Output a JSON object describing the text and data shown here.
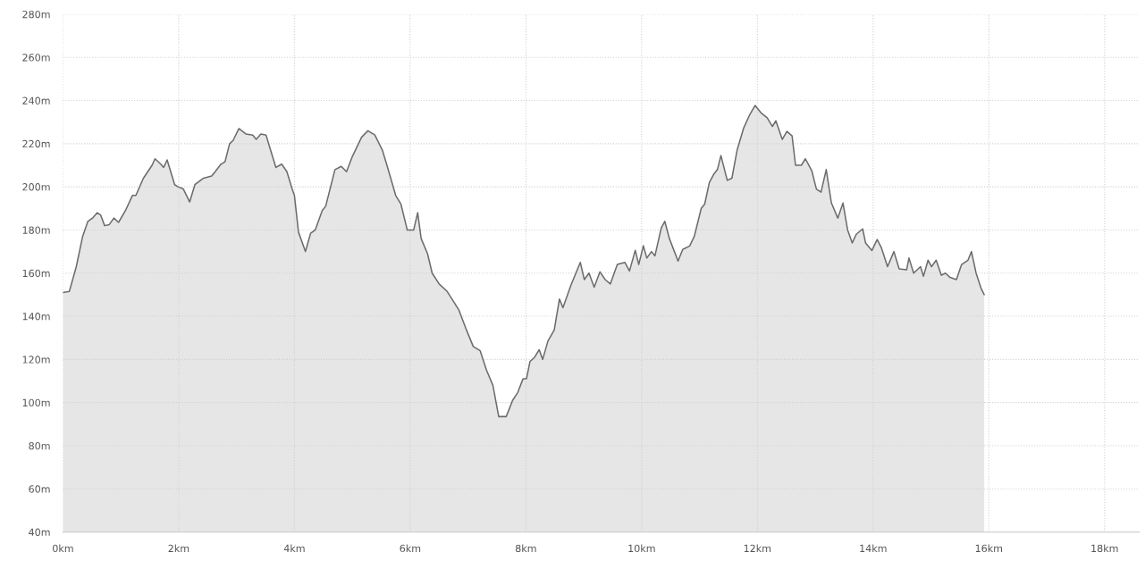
{
  "chart_data": {
    "type": "area",
    "x": [
      0,
      0.11,
      0.23,
      0.34,
      0.43,
      0.51,
      0.59,
      0.65,
      0.72,
      0.8,
      0.88,
      0.96,
      1.08,
      1.2,
      1.26,
      1.39,
      1.54,
      1.59,
      1.69,
      1.74,
      1.8,
      1.93,
      1.99,
      2.08,
      2.19,
      2.28,
      2.43,
      2.57,
      2.63,
      2.73,
      2.8,
      2.88,
      2.94,
      3.04,
      3.16,
      3.28,
      3.34,
      3.42,
      3.51,
      3.57,
      3.68,
      3.78,
      3.87,
      3.96,
      4.0,
      4.07,
      4.19,
      4.28,
      4.36,
      4.48,
      4.54,
      4.7,
      4.81,
      4.9,
      5.0,
      5.16,
      5.27,
      5.39,
      5.52,
      5.62,
      5.75,
      5.84,
      5.95,
      6.06,
      6.13,
      6.19,
      6.3,
      6.38,
      6.5,
      6.64,
      6.84,
      6.96,
      7.09,
      7.21,
      7.32,
      7.43,
      7.53,
      7.66,
      7.77,
      7.86,
      7.95,
      8.01,
      8.07,
      8.15,
      8.23,
      8.29,
      8.38,
      8.49,
      8.58,
      8.64,
      8.78,
      8.94,
      9.01,
      9.09,
      9.18,
      9.28,
      9.37,
      9.46,
      9.58,
      9.71,
      9.79,
      9.89,
      9.95,
      10.03,
      10.09,
      10.17,
      10.23,
      10.34,
      10.4,
      10.48,
      10.63,
      10.71,
      10.83,
      10.91,
      11.03,
      11.09,
      11.17,
      11.25,
      11.31,
      11.37,
      11.48,
      11.56,
      11.65,
      11.76,
      11.86,
      11.96,
      12.06,
      12.17,
      12.26,
      12.32,
      12.43,
      12.51,
      12.6,
      12.66,
      12.76,
      12.83,
      12.94,
      13.02,
      13.1,
      13.19,
      13.28,
      13.39,
      13.48,
      13.56,
      13.64,
      13.71,
      13.82,
      13.87,
      13.98,
      14.07,
      14.14,
      14.25,
      14.36,
      14.45,
      14.58,
      14.62,
      14.7,
      14.82,
      14.87,
      14.95,
      15.01,
      15.09,
      15.18,
      15.25,
      15.33,
      15.44,
      15.53,
      15.64,
      15.7,
      15.78,
      15.87,
      15.92
    ],
    "series": [
      {
        "color": "#6b6b6b",
        "values": [
          151,
          151.5,
          163,
          177,
          184,
          185.5,
          188,
          187,
          182,
          182.5,
          185.5,
          183.5,
          189,
          196,
          196,
          204,
          210,
          213,
          210.5,
          209,
          212.5,
          201,
          200,
          199,
          193,
          201,
          204,
          205,
          207,
          210.5,
          211.6,
          220,
          221.5,
          227,
          224.5,
          224,
          222,
          224.5,
          224,
          218.6,
          209,
          210.5,
          207,
          199,
          196,
          179,
          170,
          178.5,
          180,
          189,
          191,
          208,
          209.5,
          207,
          214,
          223,
          226,
          224,
          217,
          208,
          196,
          192,
          180,
          180,
          188,
          176,
          169,
          160,
          155,
          151.5,
          143,
          134.5,
          126,
          124,
          115,
          108,
          93.5,
          93.5,
          101,
          104.7,
          111,
          111,
          119,
          121,
          124.5,
          120,
          128.5,
          133.7,
          148,
          144,
          154.5,
          165,
          157,
          160,
          153.5,
          160.6,
          157,
          155,
          164,
          165,
          161,
          170.6,
          164,
          172.7,
          167,
          170,
          168,
          181,
          184,
          176,
          165.6,
          171,
          172.6,
          177,
          190,
          192,
          202,
          206,
          208,
          214.5,
          203,
          204,
          217,
          227,
          233,
          237.7,
          234.4,
          232,
          228,
          230.6,
          222,
          225.7,
          223.6,
          210,
          210,
          213,
          207.5,
          199,
          197.5,
          208,
          192.5,
          185.5,
          192.5,
          180,
          174,
          178,
          180.5,
          174,
          170.5,
          175.6,
          172,
          163,
          170,
          162,
          161.6,
          167,
          160,
          163,
          158.5,
          166,
          163,
          166,
          159,
          160,
          158,
          157,
          164,
          166,
          170,
          160,
          152.7,
          150
        ]
      }
    ],
    "xlim": [
      0,
      18.6
    ],
    "xticks": [
      {
        "value": 0,
        "label": "0km"
      },
      {
        "value": 2,
        "label": "2km"
      },
      {
        "value": 4,
        "label": "4km"
      },
      {
        "value": 6,
        "label": "6km"
      },
      {
        "value": 8,
        "label": "8km"
      },
      {
        "value": 10,
        "label": "10km"
      },
      {
        "value": 12,
        "label": "12km"
      },
      {
        "value": 14,
        "label": "14km"
      },
      {
        "value": 16,
        "label": "16km"
      },
      {
        "value": 18,
        "label": "18km"
      }
    ],
    "ylim": [
      40,
      280
    ],
    "yticks": [
      {
        "value": 40,
        "label": "40m"
      },
      {
        "value": 60,
        "label": "60m"
      },
      {
        "value": 80,
        "label": "80m"
      },
      {
        "value": 100,
        "label": "100m"
      },
      {
        "value": 120,
        "label": "120m"
      },
      {
        "value": 140,
        "label": "140m"
      },
      {
        "value": 160,
        "label": "160m"
      },
      {
        "value": 180,
        "label": "180m"
      },
      {
        "value": 200,
        "label": "200m"
      },
      {
        "value": 220,
        "label": "220m"
      },
      {
        "value": 240,
        "label": "240m"
      },
      {
        "value": 260,
        "label": "260m"
      },
      {
        "value": 280,
        "label": "280m"
      }
    ],
    "grid": true
  }
}
